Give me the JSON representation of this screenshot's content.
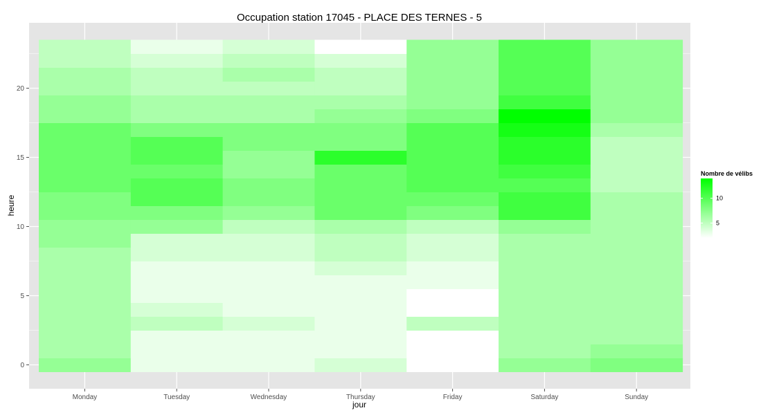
{
  "chart_data": {
    "type": "heatmap",
    "title": "Occupation station 17045 - PLACE DES TERNES - 5",
    "xlabel": "jour",
    "ylabel": "heure",
    "x_categories": [
      "Monday",
      "Tuesday",
      "Wednesday",
      "Thursday",
      "Friday",
      "Saturday",
      "Sunday"
    ],
    "y_hours": [
      0,
      1,
      2,
      3,
      4,
      5,
      6,
      7,
      8,
      9,
      10,
      11,
      12,
      13,
      14,
      15,
      16,
      17,
      18,
      19,
      20,
      21,
      22,
      23
    ],
    "y_ticks": [
      0,
      5,
      10,
      15,
      20
    ],
    "grid": true,
    "legend": {
      "title": "Nombre de vélibs",
      "placement": "right",
      "ticks": [
        5,
        10
      ],
      "min": 2,
      "max": 14,
      "low_color": "#ffffff",
      "high_color": "#00ff00"
    },
    "panel_color": "#e5e5e5",
    "grid_color": "#ffffff",
    "values": [
      [
        7,
        3,
        3,
        4,
        2,
        7,
        8
      ],
      [
        6,
        3,
        3,
        3,
        2,
        6,
        7
      ],
      [
        6,
        3,
        3,
        3,
        2,
        6,
        6
      ],
      [
        6,
        5,
        4,
        3,
        5,
        6,
        6
      ],
      [
        6,
        4,
        3,
        3,
        2,
        6,
        6
      ],
      [
        6,
        3,
        3,
        3,
        2,
        6,
        6
      ],
      [
        6,
        3,
        3,
        3,
        3,
        6,
        6
      ],
      [
        6,
        3,
        3,
        4,
        3,
        6,
        6
      ],
      [
        6,
        4,
        4,
        5,
        4,
        6,
        6
      ],
      [
        7,
        4,
        4,
        5,
        4,
        6,
        6
      ],
      [
        7,
        7,
        5,
        6,
        5,
        7,
        6
      ],
      [
        8,
        8,
        7,
        9,
        8,
        11,
        6
      ],
      [
        8,
        10,
        8,
        9,
        9,
        11,
        6
      ],
      [
        9,
        10,
        8,
        9,
        10,
        10,
        5
      ],
      [
        9,
        9,
        7,
        9,
        10,
        11,
        5
      ],
      [
        9,
        10,
        7,
        12,
        10,
        12,
        5
      ],
      [
        9,
        10,
        8,
        8,
        10,
        12,
        5
      ],
      [
        9,
        8,
        8,
        8,
        10,
        13,
        6
      ],
      [
        7,
        6,
        6,
        7,
        8,
        14,
        7
      ],
      [
        7,
        6,
        6,
        6,
        7,
        11,
        7
      ],
      [
        6,
        5,
        5,
        5,
        7,
        10,
        7
      ],
      [
        6,
        5,
        6,
        5,
        7,
        10,
        7
      ],
      [
        5,
        4,
        5,
        4,
        7,
        10,
        7
      ],
      [
        5,
        3,
        4,
        2,
        7,
        10,
        7
      ]
    ]
  }
}
